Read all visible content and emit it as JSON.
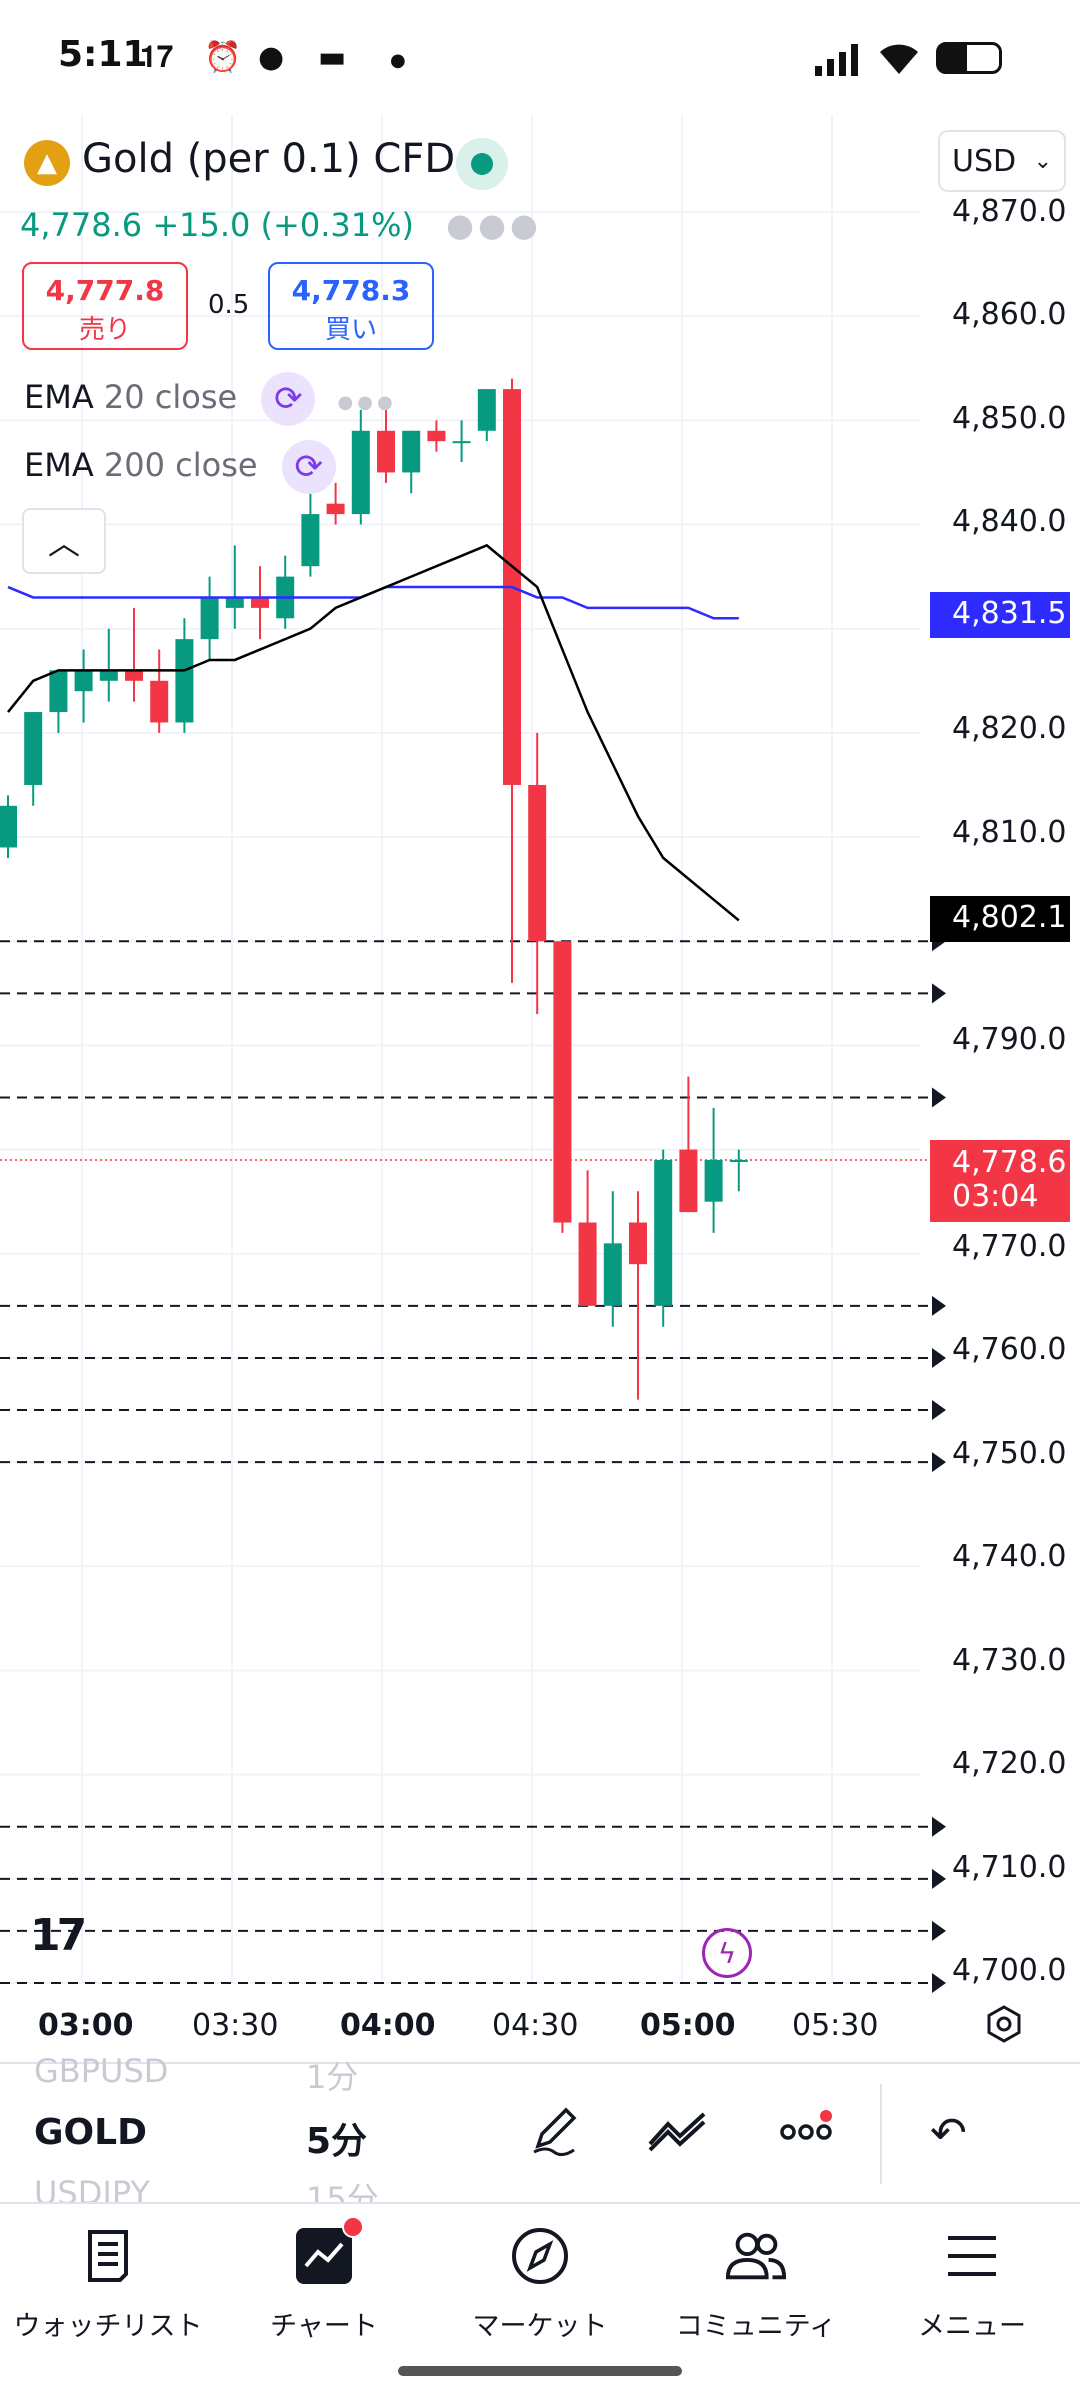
{
  "status_bar": {
    "time": "5:11"
  },
  "header": {
    "symbol": "Gold (per 0.1) CFD",
    "currency": "USD",
    "last_price": "4,778.6",
    "change": "+15.0 (+0.31%)",
    "sell": {
      "price": "4,777.8",
      "label": "売り"
    },
    "buy": {
      "price": "4,778.3",
      "label": "買い"
    },
    "spread": "0.5"
  },
  "indicators": [
    {
      "name": "EMA",
      "param": "20 close",
      "color": "#000000"
    },
    {
      "name": "EMA",
      "param": "200 close",
      "color": "#2e2bff"
    }
  ],
  "price_tags": {
    "ema200": "4,831.5",
    "ema20": "4,802.1",
    "last_price": "4,778.6",
    "countdown": "03:04"
  },
  "price_axis": [
    "4,870.0",
    "4,860.0",
    "4,850.0",
    "4,840.0",
    "4,820.0",
    "4,810.0",
    "4,790.0",
    "4,770.0",
    "4,760.0",
    "4,750.0",
    "4,740.0",
    "4,730.0",
    "4,720.0",
    "4,710.0",
    "4,700.0"
  ],
  "time_axis": [
    {
      "label": "03:00",
      "bold": true
    },
    {
      "label": "03:30",
      "bold": false
    },
    {
      "label": "04:00",
      "bold": true
    },
    {
      "label": "04:30",
      "bold": false
    },
    {
      "label": "05:00",
      "bold": true
    },
    {
      "label": "05:30",
      "bold": false
    }
  ],
  "chart_data": {
    "type": "candlestick",
    "ylim": [
      4697,
      4873
    ],
    "candles": [
      {
        "o": 4809,
        "h": 4814,
        "l": 4808,
        "c": 4813
      },
      {
        "o": 4815,
        "h": 4822,
        "l": 4813,
        "c": 4822
      },
      {
        "o": 4822,
        "h": 4826,
        "l": 4820,
        "c": 4826
      },
      {
        "o": 4824,
        "h": 4828,
        "l": 4821,
        "c": 4826
      },
      {
        "o": 4825,
        "h": 4830,
        "l": 4823,
        "c": 4826
      },
      {
        "o": 4826,
        "h": 4832,
        "l": 4823,
        "c": 4825
      },
      {
        "o": 4825,
        "h": 4828,
        "l": 4820,
        "c": 4821
      },
      {
        "o": 4821,
        "h": 4831,
        "l": 4820,
        "c": 4829
      },
      {
        "o": 4829,
        "h": 4835,
        "l": 4827,
        "c": 4833
      },
      {
        "o": 4832,
        "h": 4838,
        "l": 4830,
        "c": 4833
      },
      {
        "o": 4833,
        "h": 4836,
        "l": 4829,
        "c": 4832
      },
      {
        "o": 4831,
        "h": 4837,
        "l": 4830,
        "c": 4835
      },
      {
        "o": 4836,
        "h": 4843,
        "l": 4835,
        "c": 4841
      },
      {
        "o": 4842,
        "h": 4844,
        "l": 4840,
        "c": 4841
      },
      {
        "o": 4841,
        "h": 4851,
        "l": 4840,
        "c": 4849
      },
      {
        "o": 4849,
        "h": 4851,
        "l": 4844,
        "c": 4845
      },
      {
        "o": 4845,
        "h": 4849,
        "l": 4843,
        "c": 4849
      },
      {
        "o": 4849,
        "h": 4850,
        "l": 4847,
        "c": 4848
      },
      {
        "o": 4848,
        "h": 4850,
        "l": 4846,
        "c": 4848
      },
      {
        "o": 4849,
        "h": 4853,
        "l": 4848,
        "c": 4853
      },
      {
        "o": 4853,
        "h": 4854,
        "l": 4796,
        "c": 4815
      },
      {
        "o": 4815,
        "h": 4820,
        "l": 4793,
        "c": 4800
      },
      {
        "o": 4800,
        "h": 4800,
        "l": 4772,
        "c": 4773
      },
      {
        "o": 4773,
        "h": 4778,
        "l": 4765,
        "c": 4765
      },
      {
        "o": 4765,
        "h": 4776,
        "l": 4763,
        "c": 4771
      },
      {
        "o": 4773,
        "h": 4776,
        "l": 4756,
        "c": 4769
      },
      {
        "o": 4765,
        "h": 4780,
        "l": 4763,
        "c": 4779
      },
      {
        "o": 4780,
        "h": 4787,
        "l": 4774,
        "c": 4774
      },
      {
        "o": 4775,
        "h": 4784,
        "l": 4772,
        "c": 4779
      },
      {
        "o": 4779,
        "h": 4780,
        "l": 4776,
        "c": 4779
      }
    ],
    "ema20": [
      4822,
      4825,
      4826,
      4826,
      4826,
      4826,
      4826,
      4826,
      4827,
      4827,
      4828,
      4829,
      4830,
      4832,
      4833,
      4834,
      4835,
      4836,
      4837,
      4838,
      4836,
      4834,
      4828,
      4822,
      4817,
      4812,
      4808,
      4806,
      4804,
      4802
    ],
    "ema200": [
      4834,
      4833,
      4833,
      4833,
      4833,
      4833,
      4833,
      4833,
      4833,
      4833,
      4833,
      4833,
      4833,
      4833,
      4833,
      4834,
      4834,
      4834,
      4834,
      4834,
      4834,
      4833,
      4833,
      4832,
      4832,
      4832,
      4832,
      4832,
      4831,
      4831
    ],
    "horizontal_levels": [
      4800,
      4795,
      4785,
      4765,
      4760,
      4755,
      4750,
      4715,
      4710,
      4705,
      4700
    ]
  },
  "toolbar": {
    "symbol_prev": "GBPUSD",
    "symbol_current": "GOLD",
    "symbol_next": "USDJPY",
    "interval_prev": "1分",
    "interval_current": "5分",
    "interval_next": "15分"
  },
  "nav": [
    {
      "label": "ウォッチリスト",
      "icon": "watchlist-icon"
    },
    {
      "label": "チャート",
      "icon": "chart-icon"
    },
    {
      "label": "マーケット",
      "icon": "compass-icon"
    },
    {
      "label": "コミュニティ",
      "icon": "community-icon"
    },
    {
      "label": "メニュー",
      "icon": "menu-icon"
    }
  ]
}
